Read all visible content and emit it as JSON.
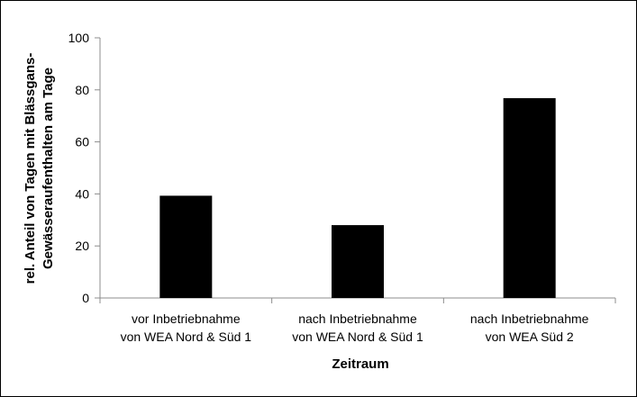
{
  "chart_data": {
    "type": "bar",
    "categories": [
      [
        "vor Inbetriebnahme",
        "von WEA Nord & Süd 1"
      ],
      [
        "nach Inbetriebnahme",
        "von WEA Nord & Süd 1"
      ],
      [
        "nach Inbetriebnahme",
        "von WEA Süd 2"
      ]
    ],
    "values": [
      39.3,
      28.0,
      76.8
    ],
    "xlabel": "Zeitraum",
    "ylabel": [
      "rel. Anteil von Tagen mit Blässgans-",
      "Gewässeraufenthalten am Tage"
    ],
    "ylim": [
      0,
      100
    ],
    "yticks": [
      "0",
      "20",
      "40",
      "60",
      "80",
      "100"
    ],
    "bar_color": "#000000",
    "grid": false,
    "legend": "none"
  }
}
